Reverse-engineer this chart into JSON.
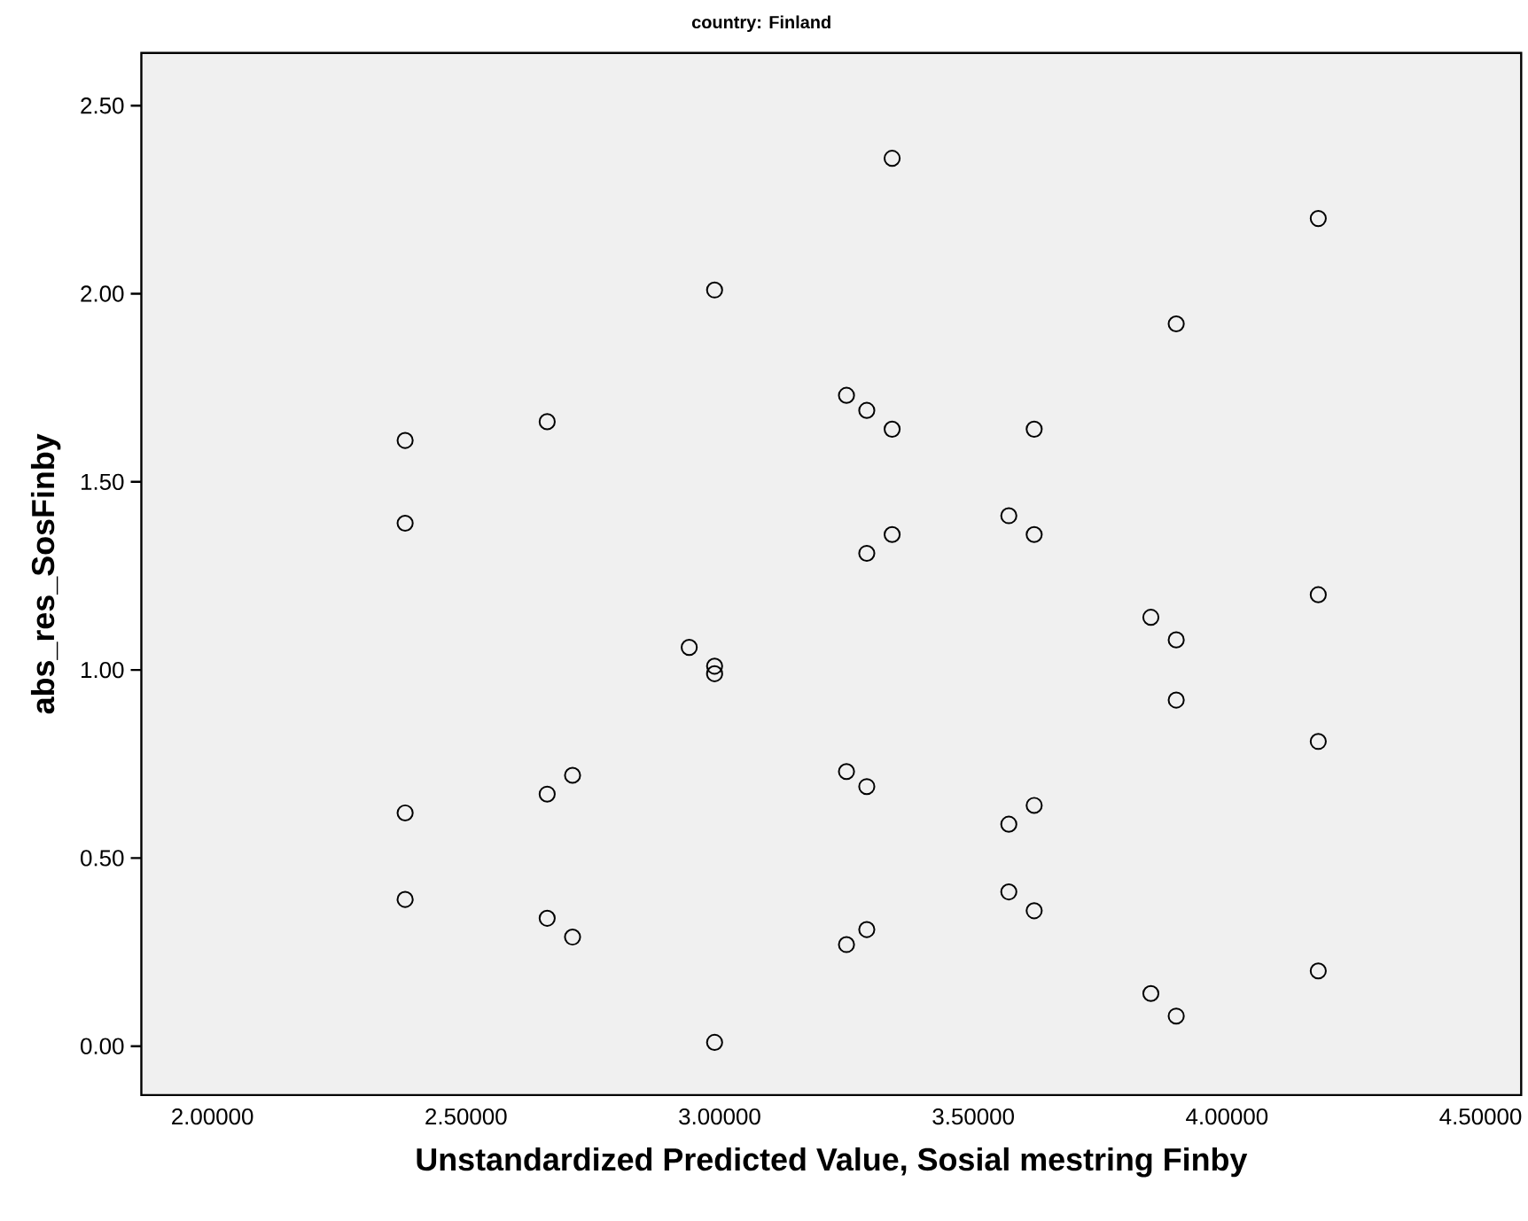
{
  "chart_data": {
    "type": "scatter",
    "title": "country: Finland",
    "xlabel": "Unstandardized Predicted Value, Sosial mestring Finby",
    "ylabel": "abs_res_SosFinby",
    "x": [
      2.38,
      2.38,
      2.38,
      2.38,
      2.66,
      2.66,
      2.71,
      2.66,
      2.71,
      2.99,
      2.94,
      2.99,
      2.99,
      2.99,
      3.34,
      4.18,
      3.9,
      3.25,
      3.29,
      3.34,
      3.62,
      3.34,
      3.29,
      3.57,
      3.62,
      4.18,
      3.85,
      3.9,
      3.9,
      4.18,
      3.25,
      3.29,
      3.62,
      3.57,
      3.57,
      3.62,
      3.29,
      3.25,
      4.18,
      3.85,
      3.9
    ],
    "values": [
      1.61,
      1.39,
      0.62,
      0.39,
      1.66,
      0.67,
      0.72,
      0.34,
      0.29,
      2.01,
      1.06,
      1.01,
      0.99,
      0.01,
      2.36,
      2.2,
      1.92,
      1.73,
      1.69,
      1.64,
      1.64,
      1.36,
      1.31,
      1.41,
      1.36,
      1.2,
      1.14,
      1.08,
      0.92,
      0.81,
      0.73,
      0.69,
      0.64,
      0.59,
      0.41,
      0.36,
      0.31,
      0.27,
      0.2,
      0.14,
      0.08
    ],
    "color": "#000000",
    "marker": "circle",
    "xlim": [
      1.86,
      4.58
    ],
    "ylim": [
      -0.13,
      2.64
    ],
    "xticks": [
      {
        "value": 2,
        "label": "2.00000"
      },
      {
        "value": 2.5,
        "label": "2.50000"
      },
      {
        "value": 3,
        "label": "3.00000"
      },
      {
        "value": 3.5,
        "label": "3.50000"
      },
      {
        "value": 4,
        "label": "4.00000"
      },
      {
        "value": 4.5,
        "label": "4.50000"
      }
    ],
    "yticks": [
      {
        "value": 0,
        "label": "0.00"
      },
      {
        "value": 0.5,
        "label": "0.50"
      },
      {
        "value": 1,
        "label": "1.00"
      },
      {
        "value": 1.5,
        "label": "1.50"
      },
      {
        "value": 2,
        "label": "2.00"
      },
      {
        "value": 2.5,
        "label": "2.50"
      }
    ]
  }
}
